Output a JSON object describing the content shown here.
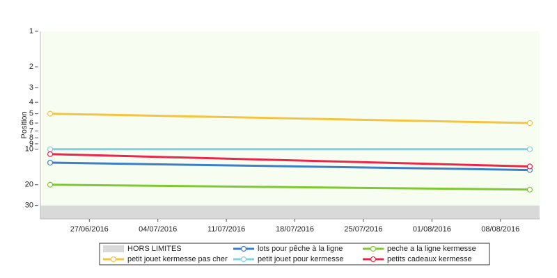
{
  "chart_data": {
    "type": "line",
    "y_label": "Position",
    "log_scale_y": true,
    "y_inverted": true,
    "ylim": [
      1,
      39
    ],
    "yticks": [
      1,
      2,
      3,
      4,
      5,
      6,
      7,
      8,
      9,
      10,
      20,
      30
    ],
    "xlim": [
      "2016-06-22",
      "2016-08-12"
    ],
    "xticks": [
      {
        "value": "2016-06-27",
        "label": "27/06/2016"
      },
      {
        "value": "2016-07-04",
        "label": "04/07/2016"
      },
      {
        "value": "2016-07-11",
        "label": "11/07/2016"
      },
      {
        "value": "2016-07-18",
        "label": "18/07/2016"
      },
      {
        "value": "2016-07-25",
        "label": "25/07/2016"
      },
      {
        "value": "2016-08-01",
        "label": "01/08/2016"
      },
      {
        "value": "2016-08-08",
        "label": "08/08/2016"
      }
    ],
    "x": [
      "2016-06-23",
      "2016-08-11"
    ],
    "out_of_range": {
      "label": "HORS LIMITES",
      "from": 30,
      "color": "#d9d9d9"
    },
    "plot_background": "#f7fdf0",
    "series": [
      {
        "name": "lots pour pêche à la ligne",
        "color": "#3c7fc7",
        "values": [
          13,
          15
        ]
      },
      {
        "name": "peche a la ligne kermesse",
        "color": "#7ec832",
        "values": [
          20,
          22
        ]
      },
      {
        "name": "petit jouet kermesse pas cher",
        "color": "#f5c342",
        "values": [
          5,
          6
        ]
      },
      {
        "name": "petit jouet pour kermesse",
        "color": "#7fd0e0",
        "values": [
          10,
          10
        ]
      },
      {
        "name": "petits cadeaux kermesse",
        "color": "#e8274a",
        "values": [
          11,
          14
        ]
      }
    ]
  }
}
